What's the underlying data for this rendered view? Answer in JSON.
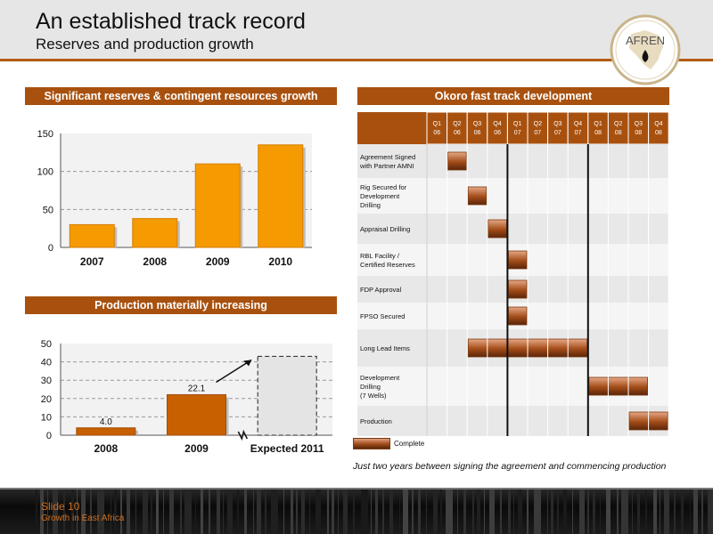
{
  "header": {
    "title": "An established track record",
    "subtitle": "Reserves and production growth",
    "logo_text": "AFREN"
  },
  "colors": {
    "accent": "#a8510f",
    "bar_orange": "#f59a00",
    "bar_dark": "#c86000",
    "footer_text": "#d07020"
  },
  "sections": {
    "reserves_title": "Significant reserves & contingent resources growth",
    "production_title": "Production materially increasing",
    "gantt_title": "Okoro fast track development"
  },
  "chart_data": [
    {
      "type": "bar",
      "title": "Significant reserves & contingent resources growth",
      "categories": [
        "2007",
        "2008",
        "2009",
        "2010"
      ],
      "values": [
        30,
        38,
        110,
        135
      ],
      "ylim": [
        0,
        150
      ],
      "yticks": [
        0,
        50,
        100,
        150
      ],
      "grid": true
    },
    {
      "type": "bar",
      "title": "Production materially increasing",
      "categories": [
        "2008",
        "2009",
        "Expected 2011"
      ],
      "values": [
        4.0,
        22.1,
        43
      ],
      "data_labels": [
        "4.0",
        "22.1",
        ""
      ],
      "projected": [
        false,
        false,
        true
      ],
      "ylim": [
        0,
        50
      ],
      "yticks": [
        0,
        10,
        20,
        30,
        40,
        50
      ],
      "grid": true
    }
  ],
  "gantt": {
    "quarters": [
      [
        "Q1",
        "06"
      ],
      [
        "Q2",
        "06"
      ],
      [
        "Q3",
        "06"
      ],
      [
        "Q4",
        "06"
      ],
      [
        "Q1",
        "07"
      ],
      [
        "Q2",
        "07"
      ],
      [
        "Q3",
        "07"
      ],
      [
        "Q4",
        "07"
      ],
      [
        "Q1",
        "08"
      ],
      [
        "Q2",
        "08"
      ],
      [
        "Q3",
        "08"
      ],
      [
        "Q4",
        "08"
      ]
    ],
    "tasks": [
      {
        "label": [
          "Agreement Signed",
          "with Partner AMNI"
        ],
        "start": 1,
        "end": 2
      },
      {
        "label": [
          "Rig Secured for",
          "Development",
          "Drilling"
        ],
        "start": 2,
        "end": 3
      },
      {
        "label": [
          "Appraisal Drilling"
        ],
        "start": 3,
        "end": 4
      },
      {
        "label": [
          "RBL Facility /",
          "Certified Reserves"
        ],
        "start": 4,
        "end": 5
      },
      {
        "label": [
          "FDP Approval"
        ],
        "start": 4,
        "end": 5
      },
      {
        "label": [
          "FPSO Secured"
        ],
        "start": 4,
        "end": 5
      },
      {
        "label": [
          "Long Lead Items"
        ],
        "start": 2,
        "end": 8
      },
      {
        "label": [
          "Development",
          "Drilling",
          "(7 Wells)"
        ],
        "start": 8,
        "end": 11
      },
      {
        "label": [
          "Production"
        ],
        "start": 10,
        "end": 12
      }
    ],
    "legend_label": "Complete",
    "caption": "Just two years between signing the agreement and commencing production"
  },
  "footer": {
    "slide_number": "Slide 10",
    "text": "Growth in East Africa"
  }
}
